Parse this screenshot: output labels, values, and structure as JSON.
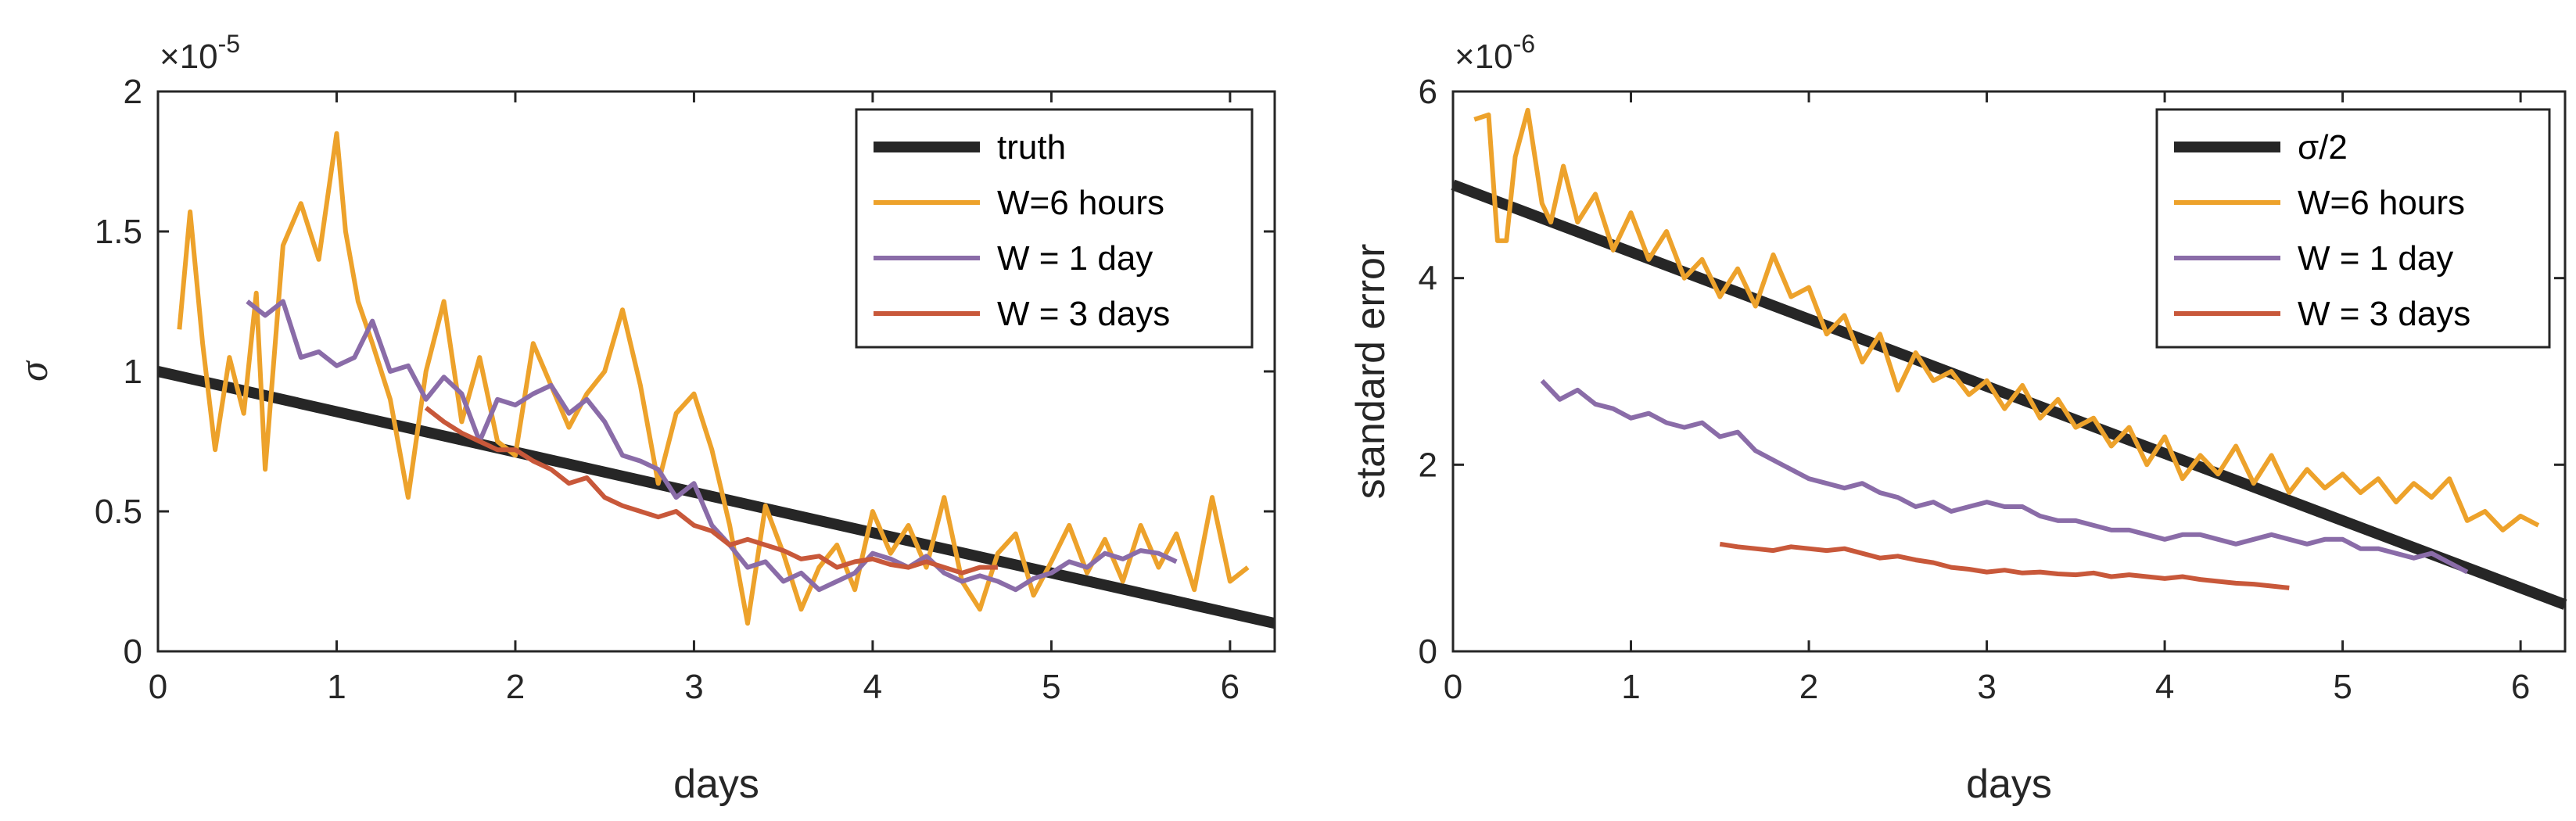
{
  "chart_data": [
    {
      "type": "line",
      "xlabel": "days",
      "ylabel": "σ",
      "y_exponent": "-5",
      "xlim": [
        0,
        6.25
      ],
      "ylim": [
        0,
        2
      ],
      "xticks": [
        "0",
        "1",
        "2",
        "3",
        "4",
        "5",
        "6"
      ],
      "yticks": [
        "0",
        "0.5",
        "1",
        "1.5",
        "2"
      ],
      "legend": {
        "position": "top-right"
      },
      "series": [
        {
          "name": "truth",
          "color": "#262626",
          "x": [
            0,
            6.25
          ],
          "y": [
            1.0,
            0.1
          ]
        },
        {
          "name": "W=6 hours",
          "color": "#EDA22B",
          "x": [
            0.12,
            0.18,
            0.25,
            0.32,
            0.4,
            0.48,
            0.55,
            0.6,
            0.7,
            0.8,
            0.9,
            1.0,
            1.05,
            1.12,
            1.2,
            1.3,
            1.4,
            1.5,
            1.6,
            1.7,
            1.8,
            1.9,
            2.0,
            2.1,
            2.2,
            2.3,
            2.4,
            2.5,
            2.6,
            2.7,
            2.8,
            2.9,
            3.0,
            3.1,
            3.2,
            3.3,
            3.4,
            3.5,
            3.6,
            3.7,
            3.8,
            3.9,
            4.0,
            4.1,
            4.2,
            4.3,
            4.4,
            4.5,
            4.6,
            4.7,
            4.8,
            4.9,
            5.0,
            5.1,
            5.2,
            5.3,
            5.4,
            5.5,
            5.6,
            5.7,
            5.8,
            5.9,
            6.0,
            6.1
          ],
          "y": [
            1.15,
            1.57,
            1.1,
            0.72,
            1.05,
            0.85,
            1.28,
            0.65,
            1.45,
            1.6,
            1.4,
            1.85,
            1.5,
            1.25,
            1.1,
            0.9,
            0.55,
            1.0,
            1.25,
            0.82,
            1.05,
            0.75,
            0.7,
            1.1,
            0.95,
            0.8,
            0.92,
            1.0,
            1.22,
            0.95,
            0.6,
            0.85,
            0.92,
            0.72,
            0.45,
            0.1,
            0.52,
            0.35,
            0.15,
            0.3,
            0.38,
            0.22,
            0.5,
            0.35,
            0.45,
            0.3,
            0.55,
            0.25,
            0.15,
            0.35,
            0.42,
            0.2,
            0.32,
            0.45,
            0.28,
            0.4,
            0.25,
            0.45,
            0.3,
            0.42,
            0.22,
            0.55,
            0.25,
            0.3
          ]
        },
        {
          "name": "W = 1 day",
          "color": "#8A6CA8",
          "x": [
            0.5,
            0.6,
            0.7,
            0.8,
            0.9,
            1.0,
            1.1,
            1.2,
            1.3,
            1.4,
            1.5,
            1.6,
            1.7,
            1.8,
            1.9,
            2.0,
            2.1,
            2.2,
            2.3,
            2.4,
            2.5,
            2.6,
            2.7,
            2.8,
            2.9,
            3.0,
            3.1,
            3.2,
            3.3,
            3.4,
            3.5,
            3.6,
            3.7,
            3.8,
            3.9,
            4.0,
            4.1,
            4.2,
            4.3,
            4.4,
            4.5,
            4.6,
            4.7,
            4.8,
            4.9,
            5.0,
            5.1,
            5.2,
            5.3,
            5.4,
            5.5,
            5.6,
            5.7
          ],
          "y": [
            1.25,
            1.2,
            1.25,
            1.05,
            1.07,
            1.02,
            1.05,
            1.18,
            1.0,
            1.02,
            0.9,
            0.98,
            0.92,
            0.75,
            0.9,
            0.88,
            0.92,
            0.95,
            0.85,
            0.9,
            0.82,
            0.7,
            0.68,
            0.65,
            0.55,
            0.6,
            0.45,
            0.38,
            0.3,
            0.32,
            0.25,
            0.28,
            0.22,
            0.25,
            0.28,
            0.35,
            0.33,
            0.3,
            0.34,
            0.28,
            0.25,
            0.27,
            0.25,
            0.22,
            0.26,
            0.28,
            0.32,
            0.3,
            0.35,
            0.33,
            0.36,
            0.35,
            0.32
          ]
        },
        {
          "name": "W = 3 days",
          "color": "#C8583A",
          "x": [
            1.5,
            1.6,
            1.7,
            1.8,
            1.9,
            2.0,
            2.1,
            2.2,
            2.3,
            2.4,
            2.5,
            2.6,
            2.7,
            2.8,
            2.9,
            3.0,
            3.1,
            3.2,
            3.3,
            3.4,
            3.5,
            3.6,
            3.7,
            3.8,
            3.9,
            4.0,
            4.1,
            4.2,
            4.3,
            4.4,
            4.5,
            4.6,
            4.7
          ],
          "y": [
            0.87,
            0.82,
            0.78,
            0.75,
            0.72,
            0.72,
            0.68,
            0.65,
            0.6,
            0.62,
            0.55,
            0.52,
            0.5,
            0.48,
            0.5,
            0.45,
            0.43,
            0.38,
            0.4,
            0.38,
            0.36,
            0.33,
            0.34,
            0.3,
            0.32,
            0.33,
            0.31,
            0.3,
            0.32,
            0.3,
            0.28,
            0.3,
            0.3
          ]
        }
      ]
    },
    {
      "type": "line",
      "xlabel": "days",
      "ylabel": "standard error",
      "y_exponent": "-6",
      "xlim": [
        0,
        6.25
      ],
      "ylim": [
        0,
        6
      ],
      "xticks": [
        "0",
        "1",
        "2",
        "3",
        "4",
        "5",
        "6"
      ],
      "yticks": [
        "0",
        "2",
        "4",
        "6"
      ],
      "legend": {
        "position": "top-right"
      },
      "series": [
        {
          "name": "σ/2",
          "color": "#262626",
          "x": [
            0,
            6.25
          ],
          "y": [
            5.0,
            0.5
          ]
        },
        {
          "name": "W=6 hours",
          "color": "#EDA22B",
          "x": [
            0.12,
            0.2,
            0.25,
            0.3,
            0.35,
            0.42,
            0.5,
            0.55,
            0.62,
            0.7,
            0.8,
            0.9,
            1.0,
            1.1,
            1.2,
            1.3,
            1.4,
            1.5,
            1.6,
            1.7,
            1.8,
            1.9,
            2.0,
            2.1,
            2.2,
            2.3,
            2.4,
            2.5,
            2.6,
            2.7,
            2.8,
            2.9,
            3.0,
            3.1,
            3.2,
            3.3,
            3.4,
            3.5,
            3.6,
            3.7,
            3.8,
            3.9,
            4.0,
            4.1,
            4.2,
            4.3,
            4.4,
            4.5,
            4.6,
            4.7,
            4.8,
            4.9,
            5.0,
            5.1,
            5.2,
            5.3,
            5.4,
            5.5,
            5.6,
            5.7,
            5.8,
            5.9,
            6.0,
            6.1
          ],
          "y": [
            5.7,
            5.75,
            4.4,
            4.4,
            5.3,
            5.8,
            4.8,
            4.6,
            5.2,
            4.6,
            4.9,
            4.3,
            4.7,
            4.2,
            4.5,
            4.0,
            4.2,
            3.8,
            4.1,
            3.7,
            4.25,
            3.8,
            3.9,
            3.4,
            3.6,
            3.1,
            3.4,
            2.8,
            3.2,
            2.9,
            3.0,
            2.75,
            2.9,
            2.6,
            2.85,
            2.5,
            2.7,
            2.4,
            2.5,
            2.2,
            2.4,
            2.0,
            2.3,
            1.85,
            2.1,
            1.9,
            2.2,
            1.8,
            2.1,
            1.7,
            1.95,
            1.75,
            1.9,
            1.7,
            1.85,
            1.6,
            1.8,
            1.65,
            1.85,
            1.4,
            1.5,
            1.3,
            1.45,
            1.35
          ]
        },
        {
          "name": "W = 1 day",
          "color": "#8A6CA8",
          "x": [
            0.5,
            0.6,
            0.7,
            0.8,
            0.9,
            1.0,
            1.1,
            1.2,
            1.3,
            1.4,
            1.5,
            1.6,
            1.7,
            1.8,
            1.9,
            2.0,
            2.1,
            2.2,
            2.3,
            2.4,
            2.5,
            2.6,
            2.7,
            2.8,
            2.9,
            3.0,
            3.1,
            3.2,
            3.3,
            3.4,
            3.5,
            3.6,
            3.7,
            3.8,
            3.9,
            4.0,
            4.1,
            4.2,
            4.3,
            4.4,
            4.5,
            4.6,
            4.7,
            4.8,
            4.9,
            5.0,
            5.1,
            5.2,
            5.3,
            5.4,
            5.5,
            5.6,
            5.7
          ],
          "y": [
            2.9,
            2.7,
            2.8,
            2.65,
            2.6,
            2.5,
            2.55,
            2.45,
            2.4,
            2.45,
            2.3,
            2.35,
            2.15,
            2.05,
            1.95,
            1.85,
            1.8,
            1.75,
            1.8,
            1.7,
            1.65,
            1.55,
            1.6,
            1.5,
            1.55,
            1.6,
            1.55,
            1.55,
            1.45,
            1.4,
            1.4,
            1.35,
            1.3,
            1.3,
            1.25,
            1.2,
            1.25,
            1.25,
            1.2,
            1.15,
            1.2,
            1.25,
            1.2,
            1.15,
            1.2,
            1.2,
            1.1,
            1.1,
            1.05,
            1.0,
            1.05,
            0.95,
            0.85
          ]
        },
        {
          "name": "W = 3 days",
          "color": "#C8583A",
          "x": [
            1.5,
            1.6,
            1.7,
            1.8,
            1.9,
            2.0,
            2.1,
            2.2,
            2.3,
            2.4,
            2.5,
            2.6,
            2.7,
            2.8,
            2.9,
            3.0,
            3.1,
            3.2,
            3.3,
            3.4,
            3.5,
            3.6,
            3.7,
            3.8,
            3.9,
            4.0,
            4.1,
            4.2,
            4.3,
            4.4,
            4.5,
            4.6,
            4.7
          ],
          "y": [
            1.15,
            1.12,
            1.1,
            1.08,
            1.12,
            1.1,
            1.08,
            1.1,
            1.05,
            1.0,
            1.02,
            0.98,
            0.95,
            0.9,
            0.88,
            0.85,
            0.87,
            0.84,
            0.85,
            0.83,
            0.82,
            0.84,
            0.8,
            0.82,
            0.8,
            0.78,
            0.8,
            0.77,
            0.75,
            0.73,
            0.72,
            0.7,
            0.68
          ]
        }
      ]
    }
  ]
}
